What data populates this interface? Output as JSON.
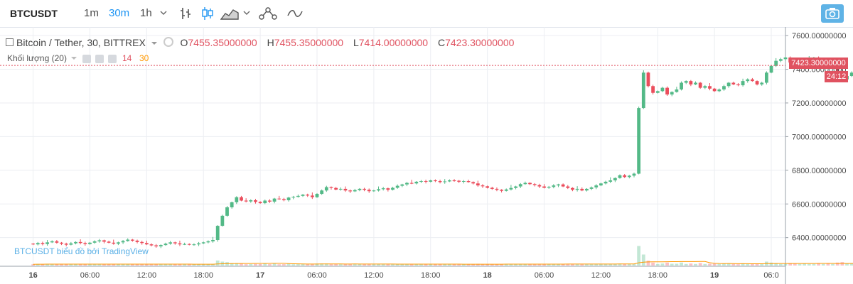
{
  "toolbar": {
    "symbol": "BTCUSDT",
    "intervals": [
      "1m",
      "30m",
      "1h"
    ],
    "active_interval": "30m",
    "icons": [
      "chevron-down-icon",
      "bar-chart-icon",
      "candlestick-icon",
      "area-chart-icon",
      "chevron-down-icon",
      "indicators-icon",
      "compare-icon",
      "camera-icon"
    ]
  },
  "legend": {
    "title": "Bitcoin / Tether, 30, BITTREX",
    "o_label": "O",
    "o_value": "7455.35000000",
    "h_label": "H",
    "h_value": "7455.35000000",
    "l_label": "L",
    "l_value": "7414.00000000",
    "c_label": "C",
    "c_value": "7423.30000000",
    "volume_label": "Khối lượng (20)",
    "volume_ma_short": "14",
    "volume_ma_long": "30"
  },
  "watermark": "BTCUSDT biểu đồ bởi TradingView",
  "last_price": "7423.30000000",
  "countdown": "24:12",
  "colors": {
    "up": "#53b987",
    "down": "#eb4d5c",
    "accent": "#2196f3",
    "ma_line": "#ff9800",
    "price_line": "#e05260"
  },
  "chart_data": {
    "type": "candlestick",
    "title": "Bitcoin / Tether, 30, BITTREX",
    "ylim": [
      6230,
      7630
    ],
    "y_ticks": [
      "7600.00000000",
      "7400.00000000",
      "7200.00000000",
      "7000.00000000",
      "6800.00000000",
      "6600.00000000",
      "6400.00000000"
    ],
    "y_tick_values": [
      7600,
      7400,
      7200,
      7000,
      6800,
      6600,
      6400
    ],
    "x_ticks": [
      "16",
      "06:00",
      "12:00",
      "18:00",
      "17",
      "06:00",
      "12:00",
      "18:00",
      "18",
      "06:00",
      "12:00",
      "18:00",
      "19",
      "06:0"
    ],
    "x_tick_hours": [
      0,
      6,
      12,
      18,
      24,
      30,
      36,
      42,
      48,
      54,
      60,
      66,
      72,
      78
    ],
    "x_range_hours": [
      -3.5,
      79.5
    ],
    "bars_per_hour": 2,
    "close": [
      6360,
      6368,
      6362,
      6372,
      6378,
      6370,
      6364,
      6358,
      6366,
      6374,
      6368,
      6362,
      6370,
      6378,
      6384,
      6376,
      6370,
      6364,
      6372,
      6380,
      6388,
      6382,
      6374,
      6368,
      6360,
      6354,
      6348,
      6356,
      6364,
      6372,
      6366,
      6360,
      6362,
      6360,
      6360,
      6366,
      6372,
      6378,
      6386,
      6470,
      6530,
      6580,
      6610,
      6640,
      6620,
      6615,
      6622,
      6612,
      6605,
      6620,
      6614,
      6632,
      6628,
      6622,
      6638,
      6642,
      6648,
      6655,
      6650,
      6640,
      6660,
      6680,
      6700,
      6695,
      6685,
      6690,
      6680,
      6675,
      6682,
      6690,
      6684,
      6676,
      6680,
      6688,
      6693,
      6684,
      6696,
      6708,
      6716,
      6725,
      6722,
      6732,
      6736,
      6732,
      6740,
      6736,
      6730,
      6734,
      6740,
      6738,
      6732,
      6736,
      6730,
      6722,
      6710,
      6705,
      6696,
      6690,
      6684,
      6678,
      6686,
      6695,
      6704,
      6718,
      6725,
      6718,
      6712,
      6704,
      6696,
      6701,
      6710,
      6716,
      6704,
      6695,
      6684,
      6690,
      6680,
      6690,
      6698,
      6710,
      6722,
      6732,
      6740,
      6754,
      6770,
      6760,
      6768,
      6780,
      7170,
      7380,
      7300,
      7260,
      7270,
      7290,
      7250,
      7265,
      7280,
      7320,
      7330,
      7310,
      7320,
      7290,
      7300,
      7285,
      7270,
      7280,
      7300,
      7320,
      7310,
      7305,
      7330,
      7340,
      7330,
      7310,
      7320,
      7380,
      7420,
      7450,
      7460,
      7470,
      7440,
      7420,
      7430,
      7450,
      7460,
      7470,
      7440,
      7450,
      7420,
      7430,
      7390,
      7340,
      7360,
      7380,
      7370,
      7390,
      7400,
      7380,
      7410,
      7420,
      7400,
      7430,
      7440,
      7430,
      7433,
      7445,
      7455,
      7423
    ]
  }
}
